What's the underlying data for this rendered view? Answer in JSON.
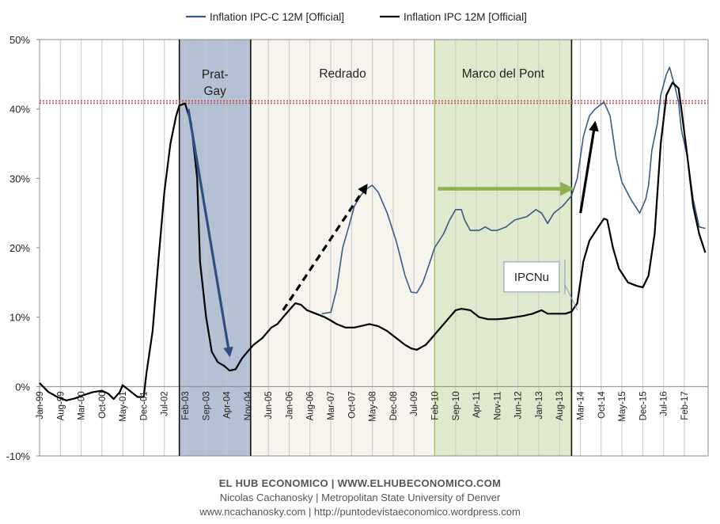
{
  "chart_data": {
    "type": "line",
    "title": "",
    "xlabel": "",
    "ylabel": "",
    "ylim": [
      -10,
      50
    ],
    "yticks": [
      -10,
      0,
      10,
      20,
      30,
      40,
      50
    ],
    "ytick_labels": [
      "-10%",
      "0%",
      "10%",
      "20%",
      "30%",
      "40%",
      "50%"
    ],
    "xtick_labels": [
      "Jan-99",
      "Aug-99",
      "Mar-00",
      "Oct-00",
      "May-01",
      "Dec-01",
      "Jul-02",
      "Feb-03",
      "Sep-03",
      "Apr-04",
      "Nov-04",
      "Jun-05",
      "Jan-06",
      "Aug-06",
      "Mar-07",
      "Oct-07",
      "May-08",
      "Dec-08",
      "Jul-09",
      "Feb-10",
      "Sep-10",
      "Apr-11",
      "Nov-11",
      "Jun-12",
      "Jan-13",
      "Aug-13",
      "Mar-14",
      "Oct-14",
      "May-15",
      "Dec-15",
      "Jul-16",
      "Feb-17"
    ],
    "xtick_values": [
      1999.0,
      1999.583,
      2000.167,
      2000.75,
      2001.333,
      2001.917,
      2002.5,
      2003.083,
      2003.667,
      2004.25,
      2004.833,
      2005.417,
      2006.0,
      2006.583,
      2007.167,
      2007.75,
      2008.333,
      2008.917,
      2009.5,
      2010.083,
      2010.667,
      2011.25,
      2011.833,
      2012.417,
      2013.0,
      2013.583,
      2014.167,
      2014.75,
      2015.333,
      2015.917,
      2016.5,
      2017.083
    ],
    "xlim": [
      1999.0,
      2017.75
    ],
    "grid": "vertical",
    "legend_position": "top",
    "reference_line": {
      "y": 41,
      "color": "#c0504d"
    },
    "series": [
      {
        "name": "Inflation IPC-C 12M [Official]",
        "color": "#3a5a84",
        "points": [
          [
            2006.92,
            10.5
          ],
          [
            2007.17,
            10.7
          ],
          [
            2007.33,
            14
          ],
          [
            2007.5,
            20
          ],
          [
            2007.67,
            23
          ],
          [
            2007.83,
            26
          ],
          [
            2008.0,
            27.5
          ],
          [
            2008.17,
            28.5
          ],
          [
            2008.33,
            29
          ],
          [
            2008.5,
            28
          ],
          [
            2008.75,
            25
          ],
          [
            2009.0,
            21
          ],
          [
            2009.25,
            16
          ],
          [
            2009.42,
            13.6
          ],
          [
            2009.58,
            13.5
          ],
          [
            2009.75,
            15
          ],
          [
            2009.92,
            17.5
          ],
          [
            2010.08,
            20
          ],
          [
            2010.33,
            22
          ],
          [
            2010.5,
            24
          ],
          [
            2010.67,
            25.5
          ],
          [
            2010.83,
            25.5
          ],
          [
            2010.92,
            24
          ],
          [
            2011.08,
            22.5
          ],
          [
            2011.33,
            22.5
          ],
          [
            2011.5,
            23
          ],
          [
            2011.67,
            22.5
          ],
          [
            2011.83,
            22.5
          ],
          [
            2012.08,
            23
          ],
          [
            2012.33,
            24
          ],
          [
            2012.67,
            24.5
          ],
          [
            2012.92,
            25.5
          ],
          [
            2013.08,
            25
          ],
          [
            2013.25,
            23.5
          ],
          [
            2013.42,
            25
          ],
          [
            2013.67,
            26
          ],
          [
            2013.92,
            27.5
          ],
          [
            2014.08,
            30
          ],
          [
            2014.25,
            36
          ],
          [
            2014.42,
            39
          ],
          [
            2014.58,
            40
          ],
          [
            2014.83,
            41
          ],
          [
            2015.0,
            39
          ],
          [
            2015.17,
            33
          ],
          [
            2015.33,
            29.5
          ],
          [
            2015.58,
            27
          ],
          [
            2015.83,
            25
          ],
          [
            2016.0,
            27
          ],
          [
            2016.08,
            29
          ],
          [
            2016.17,
            34
          ],
          [
            2016.33,
            38
          ],
          [
            2016.42,
            42
          ],
          [
            2016.58,
            45
          ],
          [
            2016.67,
            46
          ],
          [
            2016.83,
            43
          ],
          [
            2016.92,
            41
          ],
          [
            2017.0,
            37
          ],
          [
            2017.17,
            33
          ],
          [
            2017.33,
            27
          ],
          [
            2017.5,
            23
          ],
          [
            2017.67,
            22.8
          ]
        ]
      },
      {
        "name": "Inflation IPC 12M [Official]",
        "color": "#000000",
        "points": [
          [
            1999.0,
            0.5
          ],
          [
            1999.25,
            -0.8
          ],
          [
            1999.5,
            -1.5
          ],
          [
            1999.75,
            -2
          ],
          [
            2000.0,
            -1.7
          ],
          [
            2000.25,
            -1.2
          ],
          [
            2000.5,
            -0.8
          ],
          [
            2000.75,
            -0.6
          ],
          [
            2000.92,
            -1
          ],
          [
            2001.08,
            -1.8
          ],
          [
            2001.25,
            -0.8
          ],
          [
            2001.33,
            0.2
          ],
          [
            2001.5,
            -0.5
          ],
          [
            2001.75,
            -1.5
          ],
          [
            2001.92,
            -1.5
          ],
          [
            2002.0,
            2
          ],
          [
            2002.17,
            8
          ],
          [
            2002.33,
            18
          ],
          [
            2002.5,
            28
          ],
          [
            2002.67,
            35
          ],
          [
            2002.83,
            39
          ],
          [
            2002.92,
            40.5
          ],
          [
            2003.08,
            40.8
          ],
          [
            2003.25,
            38
          ],
          [
            2003.42,
            30
          ],
          [
            2003.5,
            18
          ],
          [
            2003.67,
            10
          ],
          [
            2003.83,
            5
          ],
          [
            2004.0,
            3.5
          ],
          [
            2004.17,
            3
          ],
          [
            2004.33,
            2.3
          ],
          [
            2004.5,
            2.5
          ],
          [
            2004.67,
            4
          ],
          [
            2004.83,
            5
          ],
          [
            2005.0,
            6
          ],
          [
            2005.25,
            7
          ],
          [
            2005.5,
            8.5
          ],
          [
            2005.67,
            9
          ],
          [
            2005.83,
            10
          ],
          [
            2006.0,
            11
          ],
          [
            2006.17,
            12
          ],
          [
            2006.33,
            11.8
          ],
          [
            2006.5,
            11
          ],
          [
            2006.75,
            10.5
          ],
          [
            2007.0,
            10
          ],
          [
            2007.17,
            9.5
          ],
          [
            2007.33,
            9
          ],
          [
            2007.58,
            8.5
          ],
          [
            2007.83,
            8.5
          ],
          [
            2008.0,
            8.7
          ],
          [
            2008.25,
            9
          ],
          [
            2008.5,
            8.7
          ],
          [
            2008.75,
            8
          ],
          [
            2009.0,
            7
          ],
          [
            2009.25,
            6
          ],
          [
            2009.42,
            5.5
          ],
          [
            2009.58,
            5.3
          ],
          [
            2009.83,
            6
          ],
          [
            2010.0,
            7
          ],
          [
            2010.25,
            8.5
          ],
          [
            2010.5,
            10
          ],
          [
            2010.67,
            11
          ],
          [
            2010.83,
            11.2
          ],
          [
            2011.08,
            11
          ],
          [
            2011.33,
            10
          ],
          [
            2011.58,
            9.7
          ],
          [
            2011.83,
            9.7
          ],
          [
            2012.08,
            9.8
          ],
          [
            2012.33,
            10
          ],
          [
            2012.58,
            10.2
          ],
          [
            2012.83,
            10.5
          ],
          [
            2013.08,
            11
          ],
          [
            2013.25,
            10.5
          ],
          [
            2013.58,
            10.5
          ],
          [
            2013.75,
            10.5
          ],
          [
            2013.92,
            10.8
          ],
          [
            2014.08,
            12
          ],
          [
            2014.25,
            18
          ],
          [
            2014.42,
            21
          ],
          [
            2014.67,
            23
          ],
          [
            2014.83,
            24.2
          ],
          [
            2014.92,
            24
          ],
          [
            2015.08,
            20
          ],
          [
            2015.25,
            17
          ],
          [
            2015.5,
            15
          ],
          [
            2015.75,
            14.5
          ],
          [
            2015.92,
            14.3
          ],
          [
            2016.08,
            16
          ],
          [
            2016.25,
            22
          ],
          [
            2016.42,
            35
          ],
          [
            2016.58,
            42
          ],
          [
            2016.75,
            43.8
          ],
          [
            2016.92,
            43
          ],
          [
            2017.0,
            40
          ],
          [
            2017.17,
            33
          ],
          [
            2017.33,
            26
          ],
          [
            2017.5,
            22
          ],
          [
            2017.67,
            19.3
          ]
        ]
      }
    ],
    "shaded_periods": [
      {
        "label": "Prat-Gay",
        "start": 2002.92,
        "end": 2004.92,
        "color": "#b4c0d4"
      },
      {
        "label": "Redrado",
        "start": 2004.92,
        "end": 2010.08,
        "color": "#f7f4ee"
      },
      {
        "label": "Marco del Pont",
        "start": 2010.08,
        "end": 2013.92,
        "color": "#dfe9cc"
      }
    ],
    "period_boundaries": [
      2002.92,
      2004.92,
      2010.08,
      2013.92
    ],
    "annotations": [
      {
        "type": "arrow",
        "style": "solid",
        "color": "#2e4f80",
        "from": [
          2003.17,
          40
        ],
        "to": [
          2004.33,
          4.5
        ]
      },
      {
        "type": "arrow",
        "style": "dashed",
        "color": "#000000",
        "from": [
          2005.83,
          11
        ],
        "to": [
          2008.17,
          29
        ]
      },
      {
        "type": "arrow",
        "style": "solid",
        "color": "#8db050",
        "from": [
          2010.17,
          28.5
        ],
        "to": [
          2013.92,
          28.5
        ]
      },
      {
        "type": "arrow",
        "style": "solid",
        "color": "#000000",
        "from": [
          2014.17,
          25
        ],
        "to": [
          2014.58,
          38
        ]
      },
      {
        "type": "box",
        "text": "IPCNu",
        "at": [
          2012.8,
          15.8
        ]
      }
    ]
  },
  "footer": {
    "line1": "EL HUB ECONOMICO | WWW.ELHUBECONOMICO.COM",
    "line2": "Nicolas Cachanosky | Metropolitan State University of Denver",
    "line3": "www.ncachanosky.com | http://puntodevistaeconomico.wordpress.com"
  }
}
